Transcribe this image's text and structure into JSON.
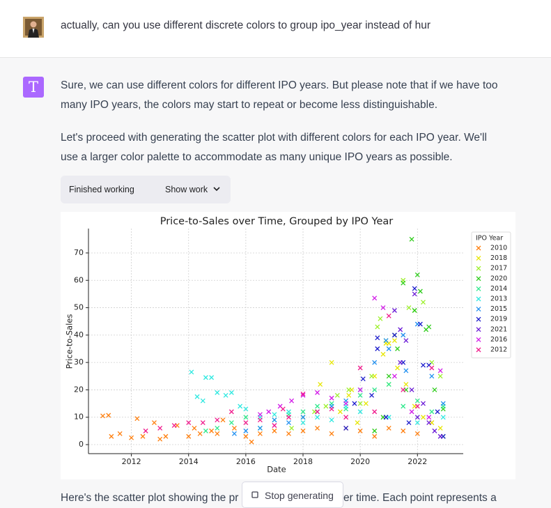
{
  "user_message": {
    "text": "actually, can you use different discrete colors to group ipo_year instead of hur"
  },
  "assistant": {
    "avatar": "T",
    "paragraphs": [
      [
        "Sure, we can use different colors for different IPO years. But please note that if we have too",
        "many IPO years, the colors may start to repeat or become less distinguishable."
      ],
      [
        "Let's proceed with generating the scatter plot with different colors for each IPO year. We'll",
        "use a larger color palette to accommodate as many unique IPO years as possible."
      ]
    ]
  },
  "work_panel": {
    "status": "Finished working",
    "toggle": "Show work"
  },
  "chart_data": {
    "type": "scatter",
    "title": "Price-to-Sales over Time, Grouped by IPO Year",
    "x_label": "Date",
    "y_label": "Price-to-Sales",
    "legend_title": "IPO Year",
    "legend_position": "upper right",
    "grid": true,
    "xlim": [
      2010.5,
      2023.6
    ],
    "xticks": [
      2012,
      2014,
      2016,
      2018,
      2020,
      2022
    ],
    "ylim": [
      -3.3,
      78.9
    ],
    "yticks": [
      0,
      10,
      20,
      30,
      40,
      50,
      60,
      70
    ],
    "series": [
      {
        "name": "2010",
        "color": "#ff7f0e",
        "x": [
          2011.0,
          2011.3,
          2011.6,
          2012.0,
          2012.4,
          2012.8,
          2013.2,
          2013.6,
          2014.0,
          2014.4,
          2014.8,
          2015.2,
          2015.6,
          2016.0,
          2016.5,
          2017.0,
          2017.5,
          2018.0,
          2018.5,
          2019.0,
          2019.5,
          2020.0,
          2020.5,
          2021.0,
          2021.5,
          2022.0,
          2022.5,
          2011.2,
          2012.2,
          2013.0,
          2014.2,
          2015.0,
          2016.2
        ],
        "values": [
          10.5,
          3,
          4,
          2.5,
          3,
          8,
          3,
          7,
          3,
          4,
          5,
          9,
          6,
          3,
          4,
          5,
          4,
          5,
          6,
          4,
          6,
          5,
          3,
          6,
          5,
          4,
          8,
          10.7,
          9.5,
          2,
          6,
          4,
          1
        ]
      },
      {
        "name": "2018",
        "color": "#e6e600",
        "x": [
          2018.6,
          2019.0,
          2019.3,
          2019.6,
          2019.9,
          2020.2,
          2020.5,
          2020.8,
          2021.0,
          2021.3,
          2021.6,
          2021.9,
          2022.2,
          2022.5,
          2022.8,
          2020.9,
          2021.2,
          2019.7
        ],
        "values": [
          22,
          30,
          12,
          18,
          8,
          15,
          25,
          33,
          37,
          28,
          22,
          14,
          10,
          8,
          6,
          37,
          38,
          20
        ]
      },
      {
        "name": "2017",
        "color": "#9cf02a",
        "x": [
          2017.6,
          2018.0,
          2018.4,
          2018.8,
          2019.2,
          2019.6,
          2020.0,
          2020.4,
          2020.6,
          2020.9,
          2021.2,
          2021.5,
          2021.7,
          2021.9,
          2022.2,
          2022.5,
          2022.8,
          2020.7,
          2021.0
        ],
        "values": [
          6,
          10,
          12,
          14,
          18,
          20,
          15,
          25,
          43,
          38,
          40,
          60,
          50,
          49,
          52,
          30,
          25,
          46,
          22
        ]
      },
      {
        "name": "2020",
        "color": "#2ecc1a",
        "x": [
          2020.5,
          2020.8,
          2021.0,
          2021.3,
          2021.6,
          2021.8,
          2022.0,
          2022.1,
          2022.3,
          2022.6,
          2022.9,
          2021.5,
          2022.4,
          2022.9,
          2021.9
        ],
        "values": [
          5,
          10,
          25,
          35,
          20,
          75,
          62,
          56,
          42,
          20,
          13,
          59,
          43,
          3,
          49
        ]
      },
      {
        "name": "2014",
        "color": "#2ee88c",
        "x": [
          2014.6,
          2015.0,
          2015.5,
          2016.0,
          2016.5,
          2017.0,
          2017.5,
          2018.0,
          2018.5,
          2019.0,
          2019.5,
          2020.0,
          2020.5,
          2021.0,
          2021.5,
          2022.0,
          2022.5,
          2022.9
        ],
        "values": [
          5,
          6,
          8,
          10,
          6,
          9,
          11,
          12,
          14,
          15,
          13,
          18,
          20,
          22,
          14,
          16,
          12,
          14
        ]
      },
      {
        "name": "2013",
        "color": "#2ee8e0",
        "x": [
          2014.1,
          2014.3,
          2014.5,
          2014.6,
          2014.8,
          2015.0,
          2015.3,
          2015.5,
          2015.8,
          2016.0,
          2016.5,
          2017.0,
          2017.5,
          2018.0,
          2018.5,
          2019.0,
          2019.5,
          2020.0,
          2021.0,
          2022.0,
          2022.9
        ],
        "values": [
          26.5,
          17.5,
          16,
          24.5,
          24.5,
          19,
          18,
          19,
          14,
          13,
          10,
          11,
          12,
          8,
          10,
          9,
          14,
          12,
          10,
          8,
          10
        ]
      },
      {
        "name": "2015",
        "color": "#1f8ff0",
        "x": [
          2015.6,
          2016.0,
          2016.5,
          2017.0,
          2017.5,
          2018.0,
          2018.5,
          2019.0,
          2019.5,
          2020.0,
          2020.5,
          2021.0,
          2021.5,
          2022.0,
          2022.5,
          2022.9,
          2020.9,
          2021.6
        ],
        "values": [
          4,
          5,
          6,
          9,
          8,
          10,
          12,
          14,
          16,
          20,
          30,
          35,
          40,
          44,
          25,
          15,
          38,
          27
        ]
      },
      {
        "name": "2019",
        "color": "#1a1acc",
        "x": [
          2019.5,
          2019.8,
          2020.1,
          2020.4,
          2020.6,
          2020.9,
          2021.2,
          2021.5,
          2021.7,
          2021.9,
          2022.1,
          2022.4,
          2022.7,
          2022.9,
          2020.6,
          2022.2
        ],
        "values": [
          6,
          15,
          24,
          18,
          35,
          10,
          40,
          30,
          8,
          57,
          44,
          29,
          12,
          3,
          39,
          29
        ]
      },
      {
        "name": "2021",
        "color": "#6a1ad6",
        "x": [
          2021.2,
          2021.4,
          2021.6,
          2021.8,
          2022.0,
          2022.2,
          2022.4,
          2022.6,
          2022.8,
          2021.4,
          2021.9
        ],
        "values": [
          49,
          42,
          38,
          20,
          10,
          15,
          8,
          5,
          3,
          30,
          55
        ]
      },
      {
        "name": "2016",
        "color": "#d21ae8",
        "x": [
          2016.5,
          2016.8,
          2017.2,
          2017.6,
          2018.0,
          2018.5,
          2019.0,
          2019.5,
          2020.0,
          2020.5,
          2020.8,
          2021.2,
          2021.8,
          2022.4,
          2022.8,
          2017.0
        ],
        "values": [
          11,
          12,
          14,
          16,
          18,
          19,
          17,
          15,
          20,
          53.5,
          50,
          25,
          12,
          10,
          27,
          7
        ]
      },
      {
        "name": "2012",
        "color": "#f01a8c",
        "x": [
          2012.5,
          2013.0,
          2013.5,
          2014.0,
          2014.5,
          2015.0,
          2015.5,
          2016.0,
          2016.5,
          2017.0,
          2017.5,
          2018.0,
          2018.5,
          2019.0,
          2019.5,
          2020.0,
          2020.5,
          2021.0,
          2021.5,
          2022.0,
          2022.5,
          2017.3
        ],
        "values": [
          5,
          6,
          7,
          8,
          8,
          9,
          12,
          8,
          9,
          7,
          10,
          18.5,
          12,
          13,
          10,
          28,
          12,
          47,
          20,
          14,
          28,
          13
        ]
      }
    ]
  },
  "bottom_text": [
    "Here's the scatter plot showing the pr",
    "er time. Each point represents a"
  ],
  "stop_button": "Stop generating"
}
